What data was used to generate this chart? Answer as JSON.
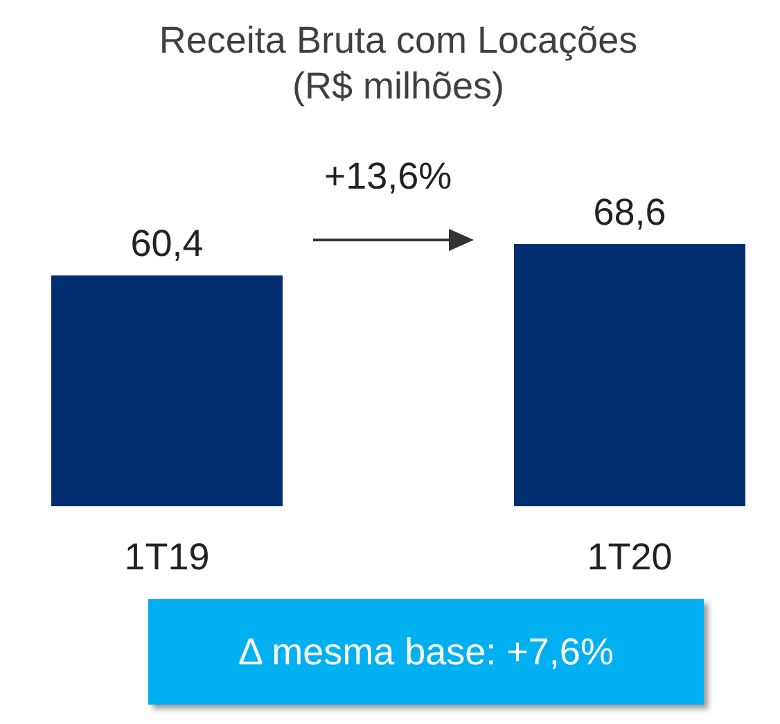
{
  "chart_data": {
    "type": "bar",
    "title": "Receita Bruta com Locações",
    "subtitle": "(R$ milhões)",
    "categories": [
      "1T19",
      "1T20"
    ],
    "values": [
      60.4,
      68.6
    ],
    "value_labels": [
      "60,4",
      "68,6"
    ],
    "color": "#002e6e",
    "annotations": [
      "+13,6%",
      "Δ mesma base: +7,6%"
    ]
  }
}
